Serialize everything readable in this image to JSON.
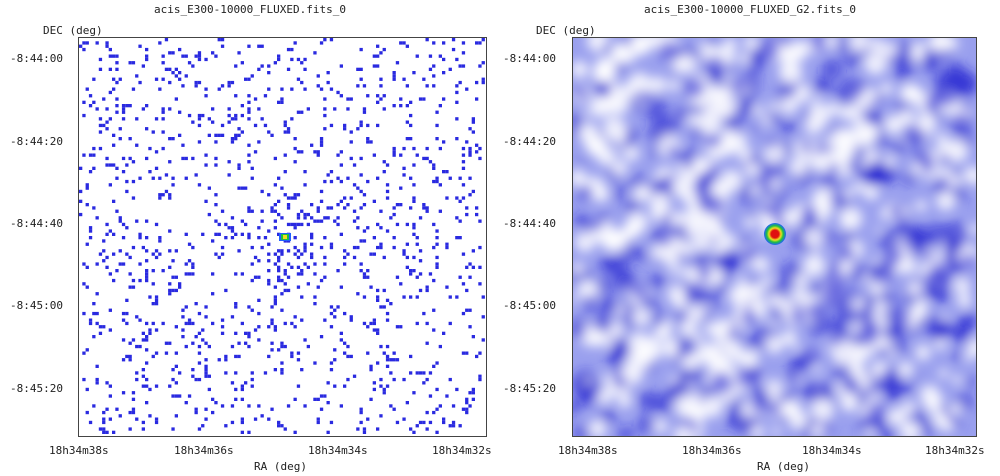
{
  "left_panel": {
    "title": "acis_E300-10000_FLUXED.fits_0",
    "y_axis_label": "DEC (deg)",
    "x_axis_label": "RA (deg)",
    "dec_ticks": [
      "-8:44:00",
      "-8:44:20",
      "-8:44:40",
      "-8:45:00",
      "-8:45:20"
    ],
    "ra_ticks": [
      "18h34m38s",
      "18h34m36s",
      "18h34m34s",
      "18h34m32s"
    ]
  },
  "right_panel": {
    "title": "acis_E300-10000_FLUXED_G2.fits_0",
    "y_axis_label": "DEC (deg)",
    "x_axis_label": "RA (deg)",
    "dec_ticks": [
      "-8:44:00",
      "-8:44:20",
      "-8:44:40",
      "-8:45:00",
      "-8:45:20"
    ],
    "ra_ticks": [
      "18h34m38s",
      "18h34m36s",
      "18h34m34s",
      "18h34m32s"
    ]
  },
  "colors": {
    "event_pixel": "#2a2ae0",
    "background_low": "#ffffff",
    "background_high": "#1f1fd0",
    "source_core": "#e01010",
    "source_ring_1": "#f0e020",
    "source_ring_2": "#20c040",
    "source_ring_3": "#2060ff",
    "frame": "#444444"
  }
}
